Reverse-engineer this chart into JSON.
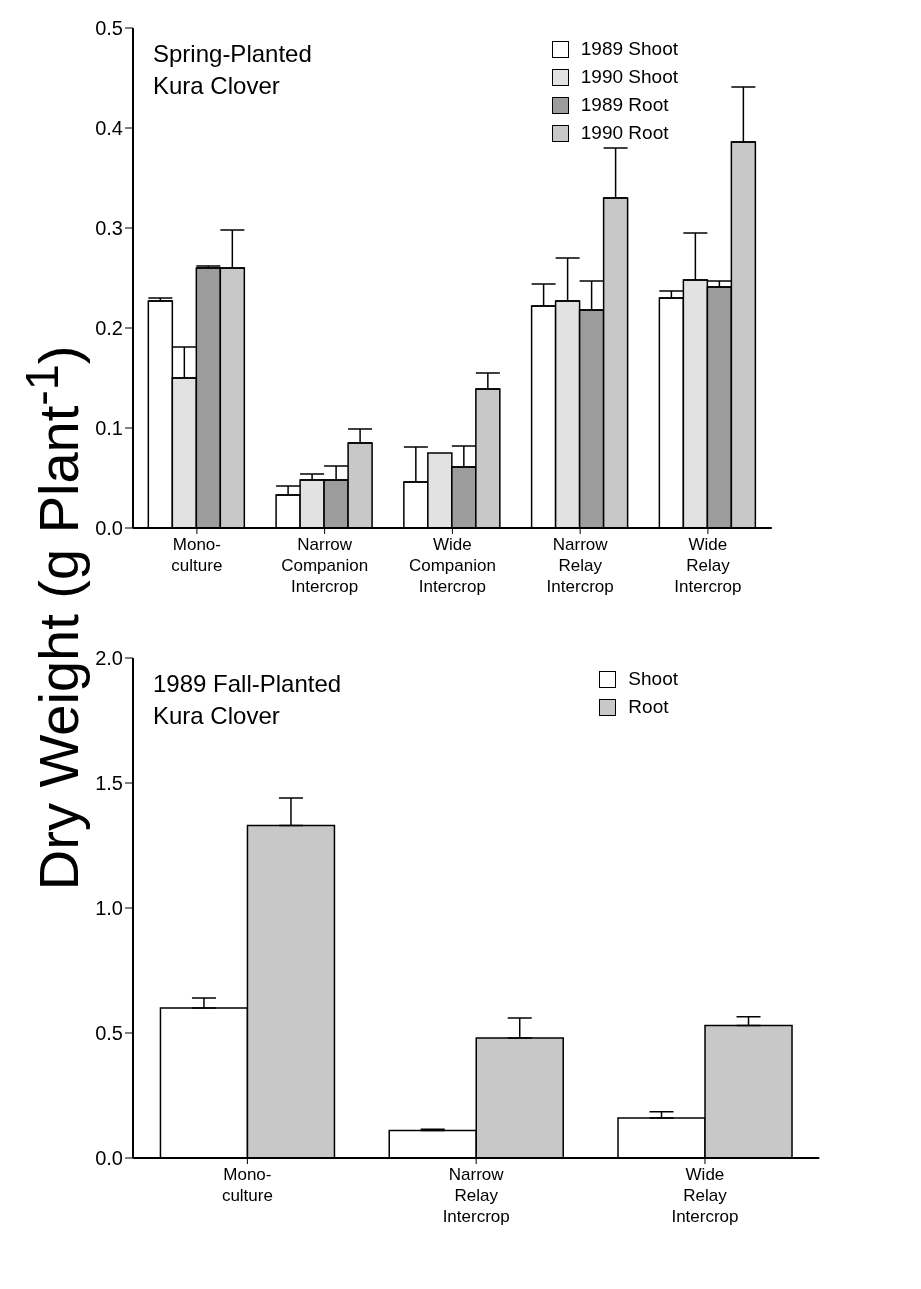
{
  "chart_data": [
    {
      "type": "bar",
      "title": "Spring-Planted\nKura Clover",
      "ylabel": "Dry Weight (g Plant$^{-1}$)",
      "categories": [
        "Mono-\nculture",
        "Narrow\nCompanion\nIntercrop",
        "Wide\nCompanion\nIntercrop",
        "Narrow\nRelay\nIntercrop",
        "Wide\nRelay\nIntercrop"
      ],
      "series": [
        {
          "name": "1989 Shoot",
          "color": "#ffffff",
          "values": [
            0.227,
            0.033,
            0.046,
            0.222,
            0.23
          ],
          "errors": [
            [
              0.227,
              0.23
            ],
            [
              0.033,
              0.042
            ],
            [
              0.046,
              0.081
            ],
            [
              0.222,
              0.244
            ],
            [
              0.23,
              0.237
            ]
          ]
        },
        {
          "name": "1990 Shoot",
          "color": "#e2e2e2",
          "values": [
            0.15,
            0.048,
            0.075,
            0.227,
            0.248
          ],
          "errors": [
            [
              0.15,
              0.181
            ],
            [
              0.048,
              0.054
            ],
            null,
            [
              0.227,
              0.27
            ],
            [
              0.248,
              0.295
            ]
          ]
        },
        {
          "name": "1989 Root",
          "color": "#9c9c9c",
          "values": [
            0.26,
            0.048,
            0.061,
            0.218,
            0.241
          ],
          "errors": [
            [
              0.26,
              0.262
            ],
            [
              0.048,
              0.062
            ],
            [
              0.061,
              0.082
            ],
            [
              0.218,
              0.247
            ],
            [
              0.241,
              0.247
            ]
          ]
        },
        {
          "name": "1990 Root",
          "color": "#c8c8c8",
          "values": [
            0.26,
            0.085,
            0.139,
            0.33,
            0.386
          ],
          "errors": [
            [
              0.26,
              0.298
            ],
            [
              0.085,
              0.099
            ],
            [
              0.139,
              0.155
            ],
            [
              0.33,
              0.38
            ],
            [
              0.386,
              0.441
            ]
          ]
        }
      ],
      "ylim": [
        0,
        0.5
      ],
      "yticks": [
        {
          "value": 0,
          "label": "0.0"
        },
        0.1,
        0.2,
        0.3,
        0.4,
        0.5
      ],
      "legend": "top right",
      "grid": false
    },
    {
      "type": "bar",
      "title": "1989 Fall-Planted\nKura Clover",
      "categories": [
        "Mono-\nculture",
        "Narrow\nRelay\nIntercrop",
        "Wide\nRelay\nIntercrop"
      ],
      "series": [
        {
          "name": "Shoot",
          "color": "#ffffff",
          "values": [
            0.6,
            0.11,
            0.16
          ],
          "errors": [
            [
              0.6,
              0.64
            ],
            [
              0.11,
              0.115
            ],
            [
              0.16,
              0.185
            ]
          ]
        },
        {
          "name": "Root",
          "color": "#c8c8c8",
          "values": [
            1.33,
            0.48,
            0.53
          ],
          "errors": [
            [
              1.33,
              1.44
            ],
            [
              0.48,
              0.56
            ],
            [
              0.53,
              0.565
            ]
          ]
        }
      ],
      "ylim": [
        0,
        2
      ],
      "yticks": [
        {
          "value": 0,
          "label": "0.0"
        },
        0.5,
        {
          "value": 1,
          "label": "1.0"
        },
        1.5,
        {
          "value": 2,
          "label": "2.0"
        }
      ],
      "legend": "top right",
      "grid": false
    }
  ]
}
